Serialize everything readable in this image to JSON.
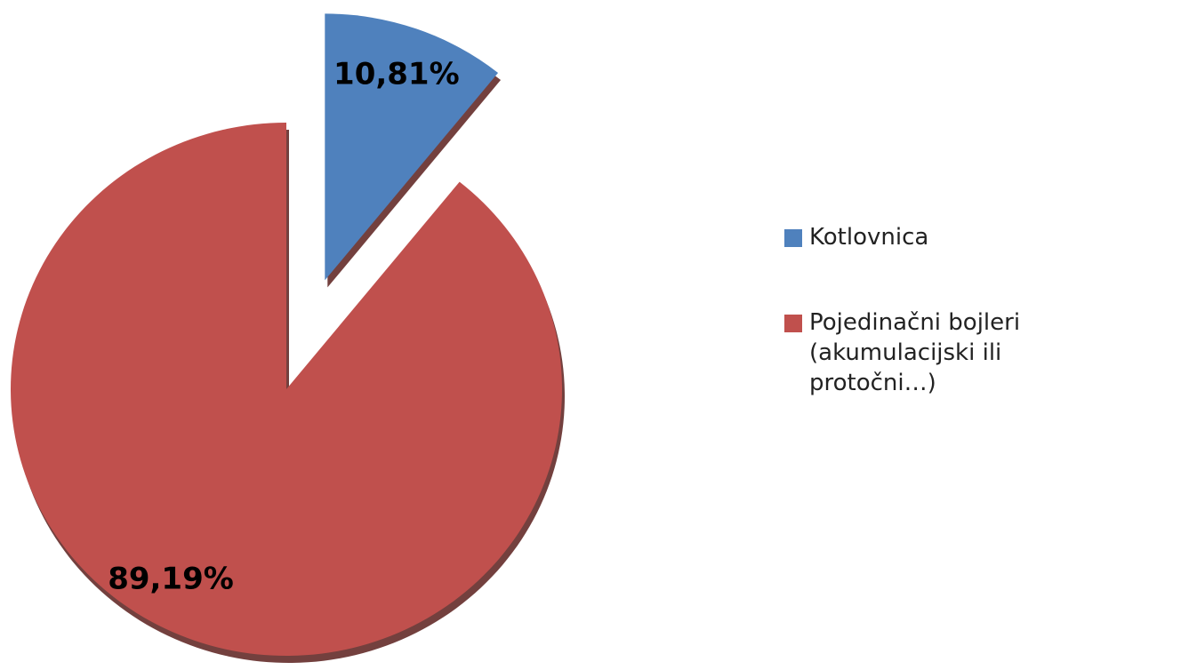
{
  "chart_data": {
    "type": "pie",
    "categories": [
      "Kotlovnica",
      "Pojedinačni bojleri (akumulacijski ili protočni…)"
    ],
    "values": [
      10.81,
      89.19
    ],
    "value_labels": [
      "10,81%",
      "89,19%"
    ],
    "colors": [
      "#4f81bd",
      "#c0504d"
    ],
    "exploded": [
      true,
      false
    ],
    "legend": "right"
  }
}
